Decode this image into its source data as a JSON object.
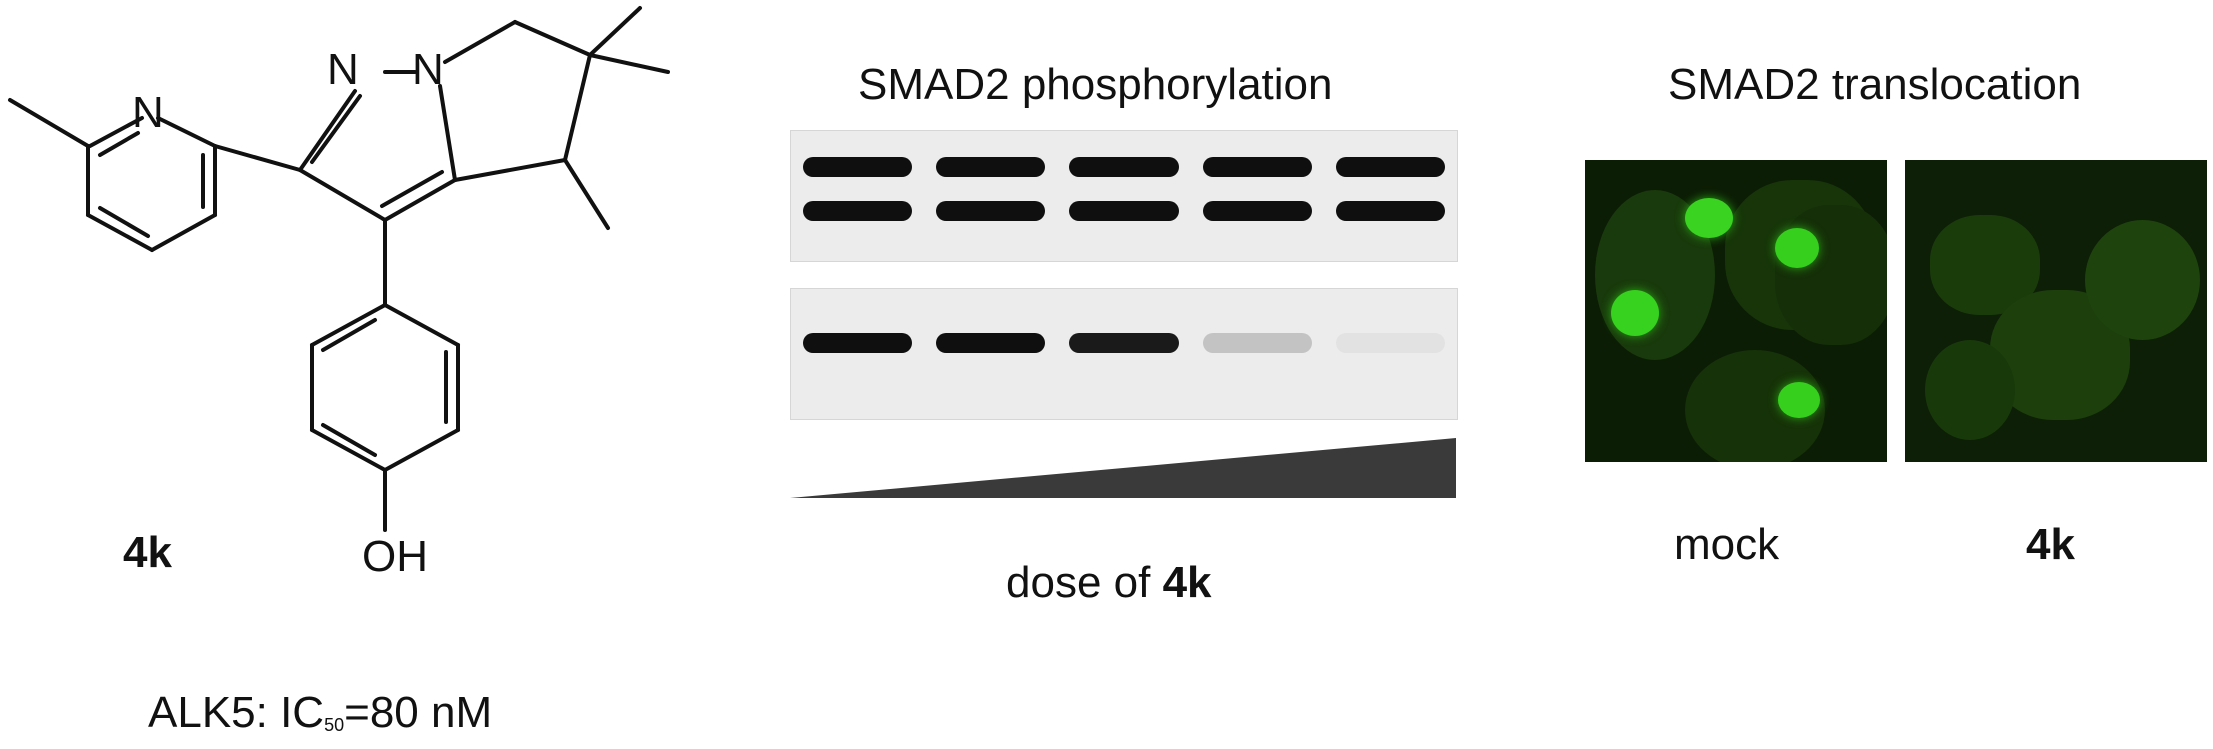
{
  "structure": {
    "atom_N1": "N",
    "atom_N2": "N",
    "atom_N3": "N",
    "atom_OH": "OH",
    "compound_label": "4k",
    "activity": {
      "prefix": "ALK5: IC",
      "subscript": "50",
      "suffix": "=80 nM"
    }
  },
  "western_blot": {
    "title": "SMAD2 phosphorylation",
    "lane_count": 5,
    "top_panel_bands": [
      1.0,
      1.0,
      1.0,
      1.0,
      1.0
    ],
    "bottom_panel_bands": [
      1.0,
      1.0,
      0.95,
      0.18,
      0.04
    ],
    "dose_prefix": "dose of ",
    "dose_compound": "4k"
  },
  "translocation": {
    "title": "SMAD2 translocation",
    "panels": [
      {
        "label": "mock",
        "bold": false
      },
      {
        "label": "4k",
        "bold": true
      }
    ],
    "fluorescence_color": "#33cc22"
  }
}
